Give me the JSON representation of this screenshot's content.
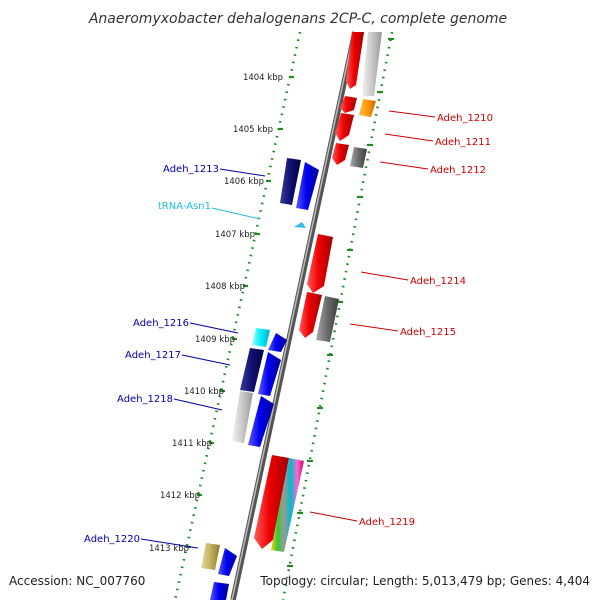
{
  "title": "Anaeromyxobacter dehalogenans 2CP-C, complete genome",
  "footer": {
    "accession": "Accession: NC_007760",
    "topology": "Topology: circular; Length: 5,013,479 bp; Genes: 4,404"
  },
  "scale_labels": [
    "1404 kbp",
    "1405 kbp",
    "1406 kbp",
    "1407 kbp",
    "1408 kbp",
    "1409 kbp",
    "1410 kbp",
    "1411 kbp",
    "1412 kbp",
    "1413 kbp"
  ],
  "genes_forward": [
    "Adeh_1210",
    "Adeh_1211",
    "Adeh_1212",
    "Adeh_1214",
    "Adeh_1215",
    "Adeh_1219"
  ],
  "genes_reverse": [
    "Adeh_1213",
    "Adeh_1216",
    "Adeh_1217",
    "Adeh_1218",
    "Adeh_1220"
  ],
  "trna": "tRNA-Asn1",
  "colors": {
    "forward_label": "#cc0000",
    "reverse_label": "#0000aa",
    "trna_label": "#22bbdd",
    "backbone": "#888888",
    "tick": "#228b22"
  }
}
